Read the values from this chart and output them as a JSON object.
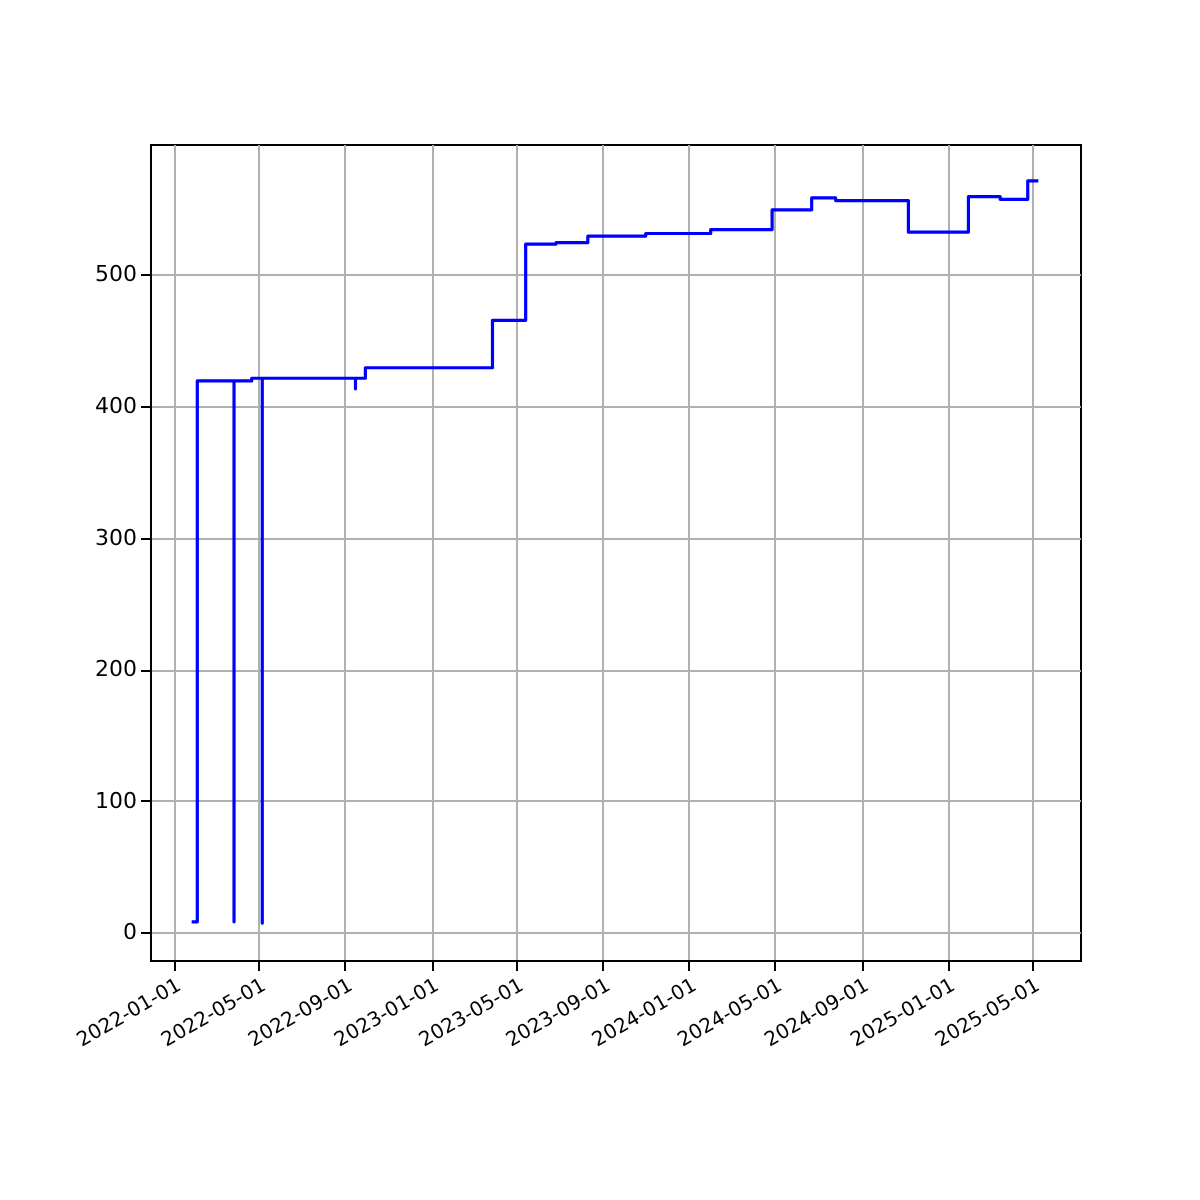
{
  "chart_data": {
    "type": "line",
    "series": [
      {
        "color": "#0000ff",
        "x": [
          "2022-01-27",
          "2022-02-04",
          "2022-02-04",
          "2022-03-28",
          "2022-03-28",
          "2022-03-28",
          "2022-04-22",
          "2022-04-22",
          "2022-05-07",
          "2022-05-07",
          "2022-05-07",
          "2022-09-16",
          "2022-09-16",
          "2022-09-16",
          "2022-09-30",
          "2022-09-30",
          "2023-03-29",
          "2023-03-29",
          "2023-05-15",
          "2023-05-15",
          "2023-06-27",
          "2023-06-27",
          "2023-08-11",
          "2023-08-11",
          "2023-11-01",
          "2023-11-01",
          "2024-02-01",
          "2024-02-01",
          "2024-04-28",
          "2024-04-28",
          "2024-06-23",
          "2024-06-23",
          "2024-07-27",
          "2024-07-27",
          "2024-11-07",
          "2024-11-07",
          "2025-01-31",
          "2025-01-31",
          "2025-03-17",
          "2025-03-17",
          "2025-04-25",
          "2025-04-25",
          "2025-05-10"
        ],
        "values": [
          8,
          8,
          419,
          419,
          8,
          419,
          419,
          421,
          421,
          7,
          421,
          421,
          413,
          421,
          421,
          429,
          429,
          465,
          465,
          523,
          523,
          524,
          524,
          529,
          529,
          531,
          531,
          534,
          534,
          549,
          549,
          558,
          558,
          556,
          556,
          532,
          532,
          559,
          559,
          557,
          557,
          571,
          571
        ]
      }
    ],
    "xlim": [
      "2021-11-29",
      "2025-07-08"
    ],
    "xticks": [
      "2022-01-01",
      "2022-05-01",
      "2022-09-01",
      "2023-01-01",
      "2023-05-01",
      "2023-09-01",
      "2024-01-01",
      "2024-05-01",
      "2024-09-01",
      "2025-01-01",
      "2025-05-01"
    ],
    "ylim": [
      -21,
      599
    ],
    "yticks": [
      0,
      100,
      200,
      300,
      400,
      500
    ],
    "grid": true,
    "line_style": "solid"
  }
}
